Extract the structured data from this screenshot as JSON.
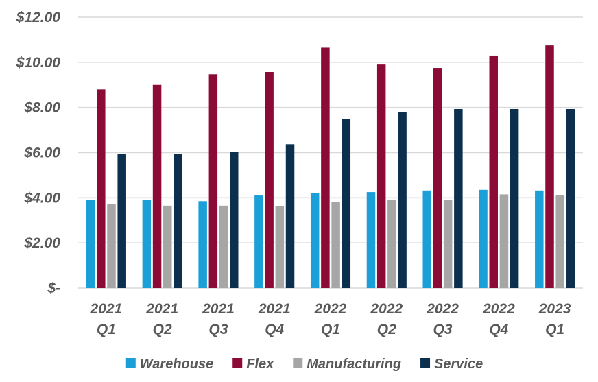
{
  "chart_data": {
    "type": "bar",
    "title": "",
    "xlabel": "",
    "ylabel": "",
    "ylim": [
      0,
      12
    ],
    "grid": true,
    "legend_position": "bottom",
    "y_ticks": [
      0,
      2,
      4,
      6,
      8,
      10,
      12
    ],
    "y_tick_labels": [
      "$-",
      "$2.00",
      "$4.00",
      "$6.00",
      "$8.00",
      "$10.00",
      "$12.00"
    ],
    "categories": [
      [
        "2021",
        "Q1"
      ],
      [
        "2021",
        "Q2"
      ],
      [
        "2021",
        "Q3"
      ],
      [
        "2021",
        "Q4"
      ],
      [
        "2022",
        "Q1"
      ],
      [
        "2022",
        "Q2"
      ],
      [
        "2022",
        "Q3"
      ],
      [
        "2022",
        "Q4"
      ],
      [
        "2023",
        "Q1"
      ]
    ],
    "series": [
      {
        "name": "Warehouse",
        "color": "#1a9fd9",
        "values": [
          3.9,
          3.9,
          3.85,
          4.1,
          4.22,
          4.25,
          4.32,
          4.35,
          4.32
        ]
      },
      {
        "name": "Flex",
        "color": "#8c0a36",
        "values": [
          8.8,
          9.0,
          9.47,
          9.57,
          10.65,
          9.9,
          9.75,
          10.3,
          10.75
        ]
      },
      {
        "name": "Manufacturing",
        "color": "#a6a6a6",
        "values": [
          3.72,
          3.65,
          3.65,
          3.62,
          3.82,
          3.92,
          3.9,
          4.15,
          4.12
        ]
      },
      {
        "name": "Service",
        "color": "#0b2f4d",
        "values": [
          5.95,
          5.95,
          6.02,
          6.37,
          7.48,
          7.8,
          7.93,
          7.93,
          7.93
        ]
      }
    ]
  }
}
